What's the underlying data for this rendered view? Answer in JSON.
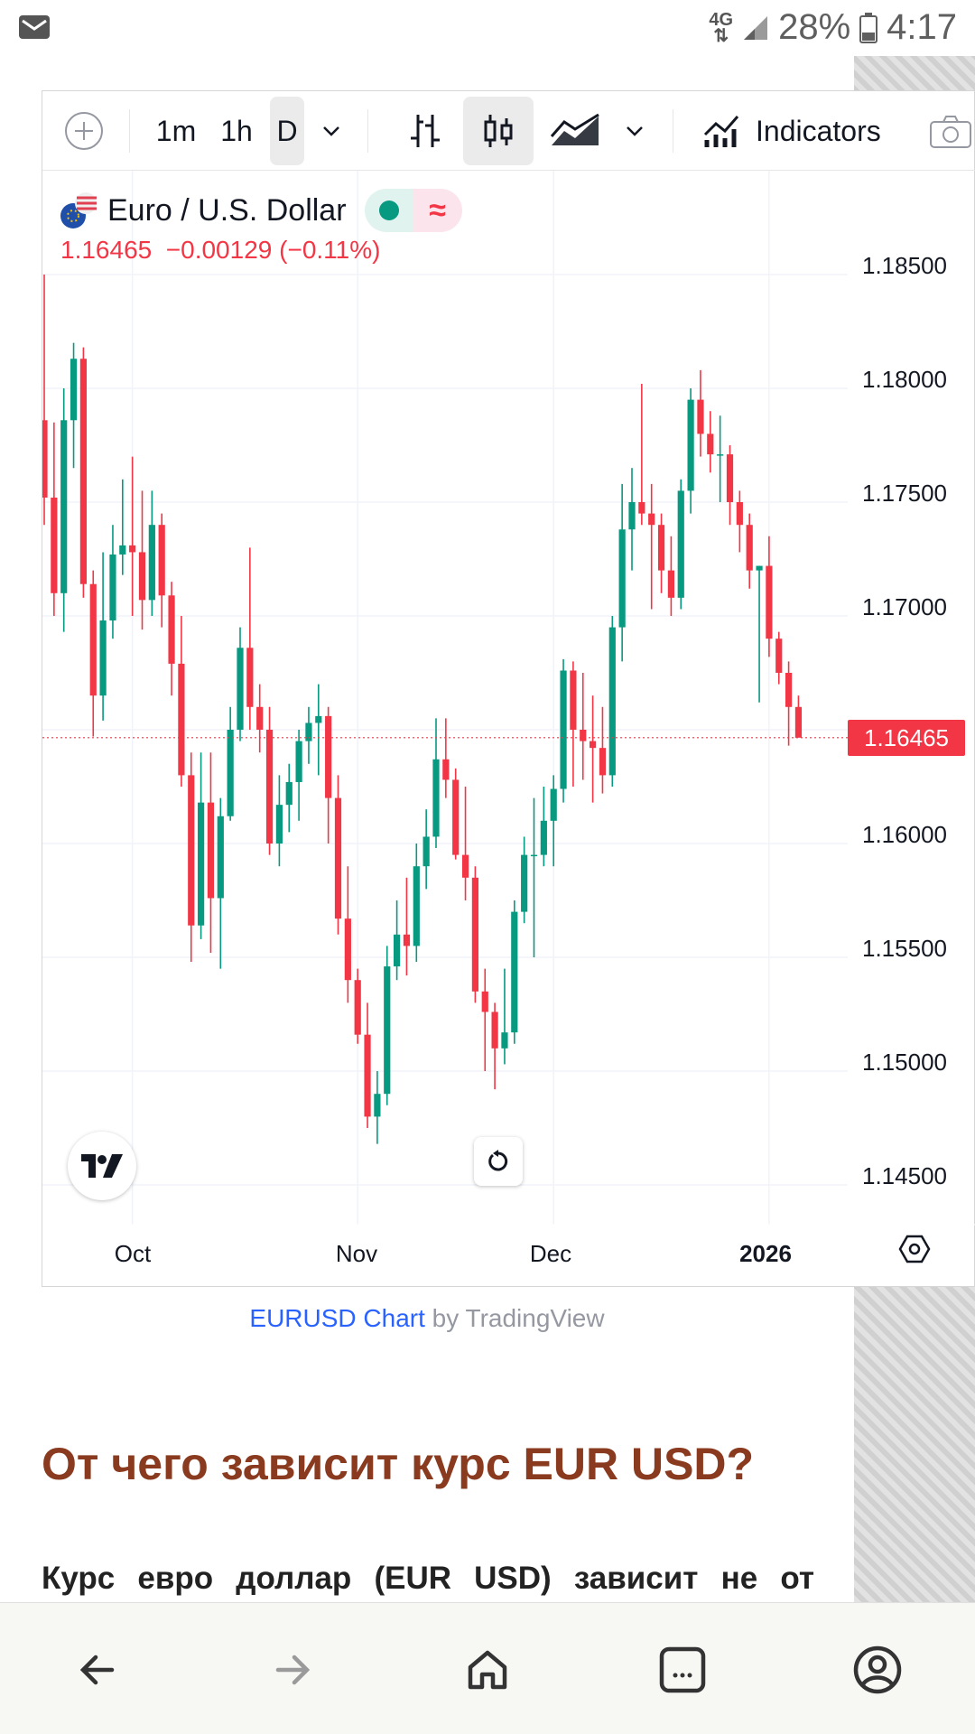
{
  "status_bar": {
    "network": "4G",
    "battery": "28%",
    "time": "4:17"
  },
  "toolbar": {
    "intervals": [
      "1m",
      "1h",
      "D"
    ],
    "indicators_label": "Indicators"
  },
  "symbol": {
    "name": "Euro / U.S. Dollar",
    "last": "1.16465",
    "change": "−0.00129",
    "change_pct": "(−0.11%)",
    "last_tag": "1.16465"
  },
  "colors": {
    "up": "#089981",
    "down": "#f23645",
    "heading": "#8a3a1e",
    "link": "#2962ff"
  },
  "chart_data": {
    "type": "candlestick",
    "symbol": "EURUSD",
    "interval": "D",
    "y_ticks": [
      "1.18500",
      "1.18000",
      "1.17500",
      "1.17000",
      "1.16500",
      "1.16000",
      "1.15500",
      "1.15000",
      "1.14500"
    ],
    "y_range": [
      1.1445,
      1.1885
    ],
    "x_ticks": [
      {
        "label": "Oct",
        "index": 9,
        "bold": false
      },
      {
        "label": "Nov",
        "index": 32,
        "bold": false
      },
      {
        "label": "Dec",
        "index": 52,
        "bold": false
      },
      {
        "label": "2026",
        "index": 74,
        "bold": true
      }
    ],
    "last_price": 1.16465,
    "candles": [
      [
        1.1786,
        1.185,
        1.174,
        1.1752
      ],
      [
        1.1752,
        1.1785,
        1.17,
        1.171
      ],
      [
        1.171,
        1.18,
        1.1693,
        1.1786
      ],
      [
        1.1786,
        1.182,
        1.1765,
        1.1813
      ],
      [
        1.1813,
        1.1818,
        1.1708,
        1.1714
      ],
      [
        1.1714,
        1.172,
        1.1647,
        1.1665
      ],
      [
        1.1665,
        1.1728,
        1.1654,
        1.1698
      ],
      [
        1.1698,
        1.174,
        1.169,
        1.1727
      ],
      [
        1.1727,
        1.176,
        1.1718,
        1.1731
      ],
      [
        1.1731,
        1.177,
        1.17,
        1.1728
      ],
      [
        1.1728,
        1.1755,
        1.1694,
        1.1707
      ],
      [
        1.1707,
        1.1755,
        1.17,
        1.174
      ],
      [
        1.174,
        1.1745,
        1.1695,
        1.1709
      ],
      [
        1.1709,
        1.1715,
        1.1665,
        1.1679
      ],
      [
        1.1679,
        1.17,
        1.1625,
        1.163
      ],
      [
        1.163,
        1.164,
        1.1548,
        1.1564
      ],
      [
        1.1564,
        1.164,
        1.1558,
        1.1618
      ],
      [
        1.1618,
        1.164,
        1.1552,
        1.1576
      ],
      [
        1.1576,
        1.162,
        1.1545,
        1.1612
      ],
      [
        1.1612,
        1.166,
        1.161,
        1.165
      ],
      [
        1.165,
        1.1695,
        1.1645,
        1.1686
      ],
      [
        1.1686,
        1.173,
        1.165,
        1.166
      ],
      [
        1.166,
        1.167,
        1.164,
        1.165
      ],
      [
        1.165,
        1.166,
        1.1595,
        1.16
      ],
      [
        1.16,
        1.163,
        1.159,
        1.1617
      ],
      [
        1.1617,
        1.1635,
        1.1605,
        1.1627
      ],
      [
        1.1627,
        1.165,
        1.161,
        1.1645
      ],
      [
        1.1645,
        1.166,
        1.1635,
        1.1653
      ],
      [
        1.1653,
        1.167,
        1.163,
        1.1656
      ],
      [
        1.1656,
        1.166,
        1.16,
        1.162
      ],
      [
        1.162,
        1.163,
        1.156,
        1.1567
      ],
      [
        1.1567,
        1.159,
        1.153,
        1.154
      ],
      [
        1.154,
        1.1545,
        1.1512,
        1.1516
      ],
      [
        1.1516,
        1.153,
        1.1475,
        1.148
      ],
      [
        1.148,
        1.15,
        1.1468,
        1.149
      ],
      [
        1.149,
        1.1555,
        1.1485,
        1.1546
      ],
      [
        1.1546,
        1.1575,
        1.154,
        1.156
      ],
      [
        1.156,
        1.1585,
        1.1542,
        1.1555
      ],
      [
        1.1555,
        1.16,
        1.1548,
        1.159
      ],
      [
        1.159,
        1.1615,
        1.158,
        1.1603
      ],
      [
        1.1603,
        1.1655,
        1.1598,
        1.1637
      ],
      [
        1.1637,
        1.1655,
        1.162,
        1.1628
      ],
      [
        1.1628,
        1.1633,
        1.1593,
        1.1595
      ],
      [
        1.1595,
        1.1625,
        1.1575,
        1.1585
      ],
      [
        1.1585,
        1.159,
        1.153,
        1.1535
      ],
      [
        1.1535,
        1.1545,
        1.15,
        1.1526
      ],
      [
        1.1526,
        1.153,
        1.1492,
        1.151
      ],
      [
        1.151,
        1.1545,
        1.1503,
        1.1517
      ],
      [
        1.1517,
        1.1575,
        1.1512,
        1.157
      ],
      [
        1.157,
        1.1603,
        1.1565,
        1.1595
      ],
      [
        1.1595,
        1.162,
        1.155,
        1.1595
      ],
      [
        1.1595,
        1.1625,
        1.159,
        1.161
      ],
      [
        1.161,
        1.163,
        1.159,
        1.1624
      ],
      [
        1.1624,
        1.1681,
        1.1618,
        1.1676
      ],
      [
        1.1676,
        1.168,
        1.1625,
        1.165
      ],
      [
        1.165,
        1.1675,
        1.1628,
        1.1645
      ],
      [
        1.1645,
        1.1665,
        1.1618,
        1.1642
      ],
      [
        1.1642,
        1.166,
        1.1622,
        1.163
      ],
      [
        1.163,
        1.17,
        1.1625,
        1.1695
      ],
      [
        1.1695,
        1.1758,
        1.168,
        1.1738
      ],
      [
        1.1738,
        1.1765,
        1.172,
        1.175
      ],
      [
        1.175,
        1.1802,
        1.174,
        1.1745
      ],
      [
        1.1745,
        1.1758,
        1.1703,
        1.174
      ],
      [
        1.174,
        1.1745,
        1.171,
        1.172
      ],
      [
        1.172,
        1.1735,
        1.17,
        1.1708
      ],
      [
        1.1708,
        1.176,
        1.1703,
        1.1755
      ],
      [
        1.1755,
        1.18,
        1.1745,
        1.1795
      ],
      [
        1.1795,
        1.1808,
        1.177,
        1.178
      ],
      [
        1.178,
        1.179,
        1.1763,
        1.1771
      ],
      [
        1.1771,
        1.1788,
        1.175,
        1.1771
      ],
      [
        1.1771,
        1.1775,
        1.174,
        1.175
      ],
      [
        1.175,
        1.1755,
        1.1728,
        1.174
      ],
      [
        1.174,
        1.1745,
        1.1712,
        1.172
      ],
      [
        1.172,
        1.1722,
        1.1662,
        1.1722
      ],
      [
        1.1722,
        1.1735,
        1.1682,
        1.169
      ],
      [
        1.169,
        1.1693,
        1.167,
        1.1675
      ],
      [
        1.1675,
        1.168,
        1.1643,
        1.166
      ],
      [
        1.166,
        1.1665,
        1.1648,
        1.16465
      ]
    ]
  },
  "attribution": {
    "link": "EURUSD Chart",
    "suffix": " by TradingView"
  },
  "article": {
    "heading": "От чего зависит курс EUR USD?",
    "paragraph": "Курс евро доллар (EUR USD) зависит не от"
  }
}
